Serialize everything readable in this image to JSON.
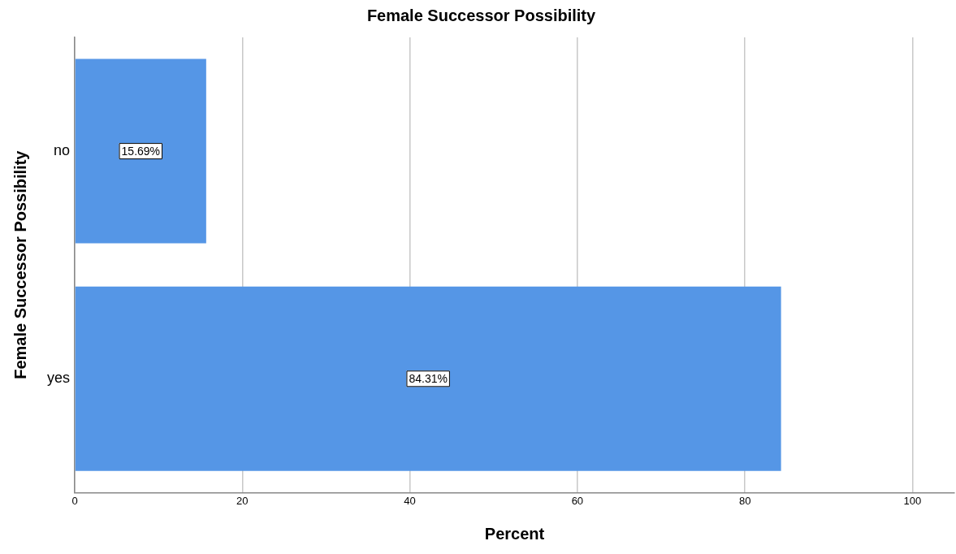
{
  "chart_data": {
    "type": "bar",
    "orientation": "horizontal",
    "title": "Female Successor Possibility",
    "xlabel": "Percent",
    "ylabel": "Female Successor Possibility",
    "categories": [
      "no",
      "yes"
    ],
    "values": [
      15.69,
      84.31
    ],
    "value_labels": [
      "15.69%",
      "84.31%"
    ],
    "color": "#5596e6",
    "xlim": [
      0,
      105
    ],
    "xticks": [
      0,
      20,
      40,
      60,
      80,
      100
    ],
    "grid": "x",
    "legend": false
  }
}
